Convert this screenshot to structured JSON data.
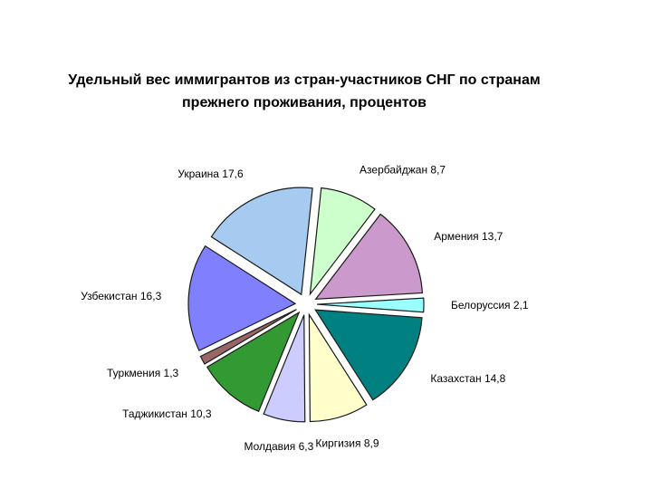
{
  "chart_data": {
    "type": "pie",
    "exploded": true,
    "title_lines": [
      "Удельный вес иммигрантов из стран-участников СНГ по странам",
      "прежнего проживания, процентов"
    ],
    "legend": "none",
    "slices": [
      {
        "label": "Азербайджан",
        "value": 8.7,
        "value_text": "8,7",
        "color": "#ccffcc"
      },
      {
        "label": "Армения",
        "value": 13.7,
        "value_text": "13,7",
        "color": "#cc99cc"
      },
      {
        "label": "Белоруссия",
        "value": 2.1,
        "value_text": "2,1",
        "color": "#99ffff"
      },
      {
        "label": "Казахстан",
        "value": 14.8,
        "value_text": "14,8",
        "color": "#008080"
      },
      {
        "label": "Киргизия",
        "value": 8.9,
        "value_text": "8,9",
        "color": "#ffffcc"
      },
      {
        "label": "Молдавия",
        "value": 6.3,
        "value_text": "6,3",
        "color": "#ccccff"
      },
      {
        "label": "Таджикистан",
        "value": 10.3,
        "value_text": "10,3",
        "color": "#339933"
      },
      {
        "label": "Туркмения",
        "value": 1.3,
        "value_text": "1,3",
        "color": "#996666"
      },
      {
        "label": "Узбекистан",
        "value": 16.3,
        "value_text": "16,3",
        "color": "#8080ff"
      },
      {
        "label": "Украина",
        "value": 17.6,
        "value_text": "17,6",
        "color": "#a6caf0"
      }
    ]
  }
}
